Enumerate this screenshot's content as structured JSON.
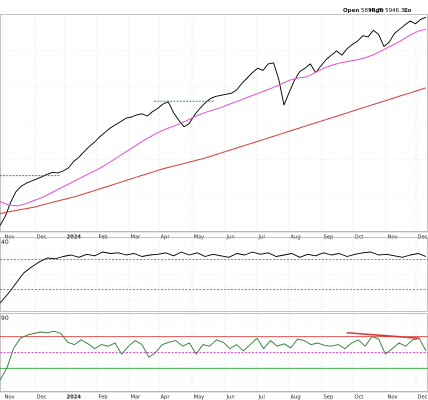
{
  "header": {
    "open_label": "Open",
    "open_value": "5897.20",
    "high_label": "High",
    "high_value": "5946.37",
    "low_label": "Lo"
  },
  "chart_data": [
    {
      "type": "line",
      "panel": "price",
      "x_tick_labels": [
        "Nov",
        "Dec",
        "2024",
        "Feb",
        "Mar",
        "Apr",
        "May",
        "Jun",
        "Jul",
        "Aug",
        "Sep",
        "Oct",
        "Nov",
        "Dec"
      ],
      "series": [
        {
          "role": "price",
          "color": "#000000",
          "values": [
            4110,
            4195,
            4320,
            4420,
            4470,
            4500,
            4520,
            4540,
            4560,
            4582,
            4600,
            4595,
            4612,
            4640,
            4700,
            4740,
            4790,
            4840,
            4880,
            4930,
            4970,
            5010,
            5040,
            5070,
            5100,
            5110,
            5130,
            5140,
            5120,
            5160,
            5190,
            5230,
            5250,
            5150,
            5080,
            5020,
            5050,
            5130,
            5190,
            5240,
            5280,
            5300,
            5310,
            5320,
            5330,
            5360,
            5420,
            5470,
            5520,
            5560,
            5540,
            5600,
            5610,
            5460,
            5220,
            5340,
            5450,
            5530,
            5560,
            5600,
            5520,
            5580,
            5640,
            5680,
            5720,
            5680,
            5740,
            5780,
            5810,
            5860,
            5850,
            5910,
            5870,
            5760,
            5800,
            5880,
            5920,
            5960,
            5995,
            5970,
            6010,
            6030
          ]
        },
        {
          "role": "moving-average-short",
          "color": "#e64fd0",
          "values": [
            4330,
            4300,
            4290,
            4310,
            4340,
            4370,
            4410,
            4450,
            4490,
            4530,
            4570,
            4610,
            4650,
            4700,
            4750,
            4800,
            4850,
            4900,
            4945,
            4985,
            5015,
            5045,
            5080,
            5120,
            5150,
            5175,
            5200,
            5230,
            5260,
            5290,
            5320,
            5350,
            5380,
            5415,
            5450,
            5470,
            5480,
            5520,
            5560,
            5590,
            5610,
            5625,
            5640,
            5660,
            5690,
            5730,
            5770,
            5810,
            5860,
            5900,
            5920
          ]
        },
        {
          "role": "moving-average-long",
          "color": "#d73a3a",
          "values": [
            4220,
            4235,
            4250,
            4265,
            4280,
            4300,
            4320,
            4340,
            4360,
            4380,
            4405,
            4430,
            4455,
            4480,
            4505,
            4530,
            4555,
            4580,
            4605,
            4630,
            4650,
            4670,
            4690,
            4710,
            4730,
            4755,
            4780,
            4805,
            4830,
            4855,
            4880,
            4905,
            4930,
            4955,
            4980,
            5005,
            5030,
            5055,
            5080,
            5105,
            5130,
            5155,
            5180,
            5205,
            5230,
            5255,
            5280,
            5305,
            5330,
            5355,
            5380
          ]
        }
      ],
      "annotations": [
        {
          "type": "horizontal-segment",
          "color": "#1fa82a",
          "y": 4570,
          "x_start": 0.0,
          "x_end": 0.14
        },
        {
          "type": "horizontal-segment",
          "color": "#1fa82a",
          "y": 5255,
          "x_start": 0.36,
          "x_end": 0.5
        }
      ]
    },
    {
      "type": "line",
      "panel": "indicator-1",
      "x_tick_labels": [],
      "edge_label": "40",
      "ylim": [
        0,
        100
      ],
      "reference_lines": [
        {
          "y": 70,
          "color": "#e64fd0",
          "style": "dashed"
        },
        {
          "y": 30,
          "color": "#e64fd0",
          "style": "dashed"
        }
      ],
      "series": [
        {
          "role": "indicator",
          "color": "#000000",
          "values": [
            12,
            24,
            38,
            52,
            60,
            67,
            72,
            71,
            74,
            76,
            73,
            77,
            75,
            80,
            78,
            79,
            76,
            78,
            74,
            76,
            77,
            79,
            75,
            80,
            76,
            79,
            74,
            77,
            75,
            73,
            78,
            76,
            80,
            77,
            79,
            74,
            76,
            78,
            73,
            77,
            75,
            79,
            76,
            78,
            74,
            77,
            79,
            80,
            76,
            77,
            75,
            73,
            76,
            78,
            74
          ]
        }
      ]
    },
    {
      "type": "line",
      "panel": "indicator-2",
      "x_tick_labels": [
        "Nov",
        "Dec",
        "2024",
        "Feb",
        "Mar",
        "Apr",
        "May",
        "Jun",
        "Jul",
        "Aug",
        "Sep",
        "Oct",
        "Nov",
        "Dec"
      ],
      "edge_label": "90",
      "ylim": [
        0,
        100
      ],
      "reference_lines": [
        {
          "y": 70,
          "color": "#d73a3a",
          "style": "solid"
        },
        {
          "y": 50,
          "color": "#e64fd0",
          "style": "dashed"
        },
        {
          "y": 30,
          "color": "#1fa82a",
          "style": "solid"
        }
      ],
      "series": [
        {
          "role": "indicator",
          "color": "#2e7d32",
          "values": [
            15,
            30,
            55,
            68,
            72,
            74,
            76,
            75,
            77,
            74,
            63,
            60,
            66,
            61,
            55,
            60,
            58,
            62,
            48,
            58,
            65,
            60,
            44,
            50,
            60,
            63,
            65,
            58,
            62,
            48,
            60,
            58,
            66,
            63,
            55,
            60,
            52,
            60,
            68,
            55,
            65,
            58,
            61,
            56,
            67,
            65,
            60,
            62,
            59,
            58,
            60,
            55,
            62,
            66,
            58,
            70,
            67,
            48,
            55,
            62,
            58,
            66,
            68,
            52
          ]
        }
      ],
      "annotations": [
        {
          "type": "trendline",
          "color": "#d73a3a",
          "x_start": 0.81,
          "x_end": 0.98,
          "y_start": 75,
          "y_end": 68
        }
      ]
    }
  ]
}
